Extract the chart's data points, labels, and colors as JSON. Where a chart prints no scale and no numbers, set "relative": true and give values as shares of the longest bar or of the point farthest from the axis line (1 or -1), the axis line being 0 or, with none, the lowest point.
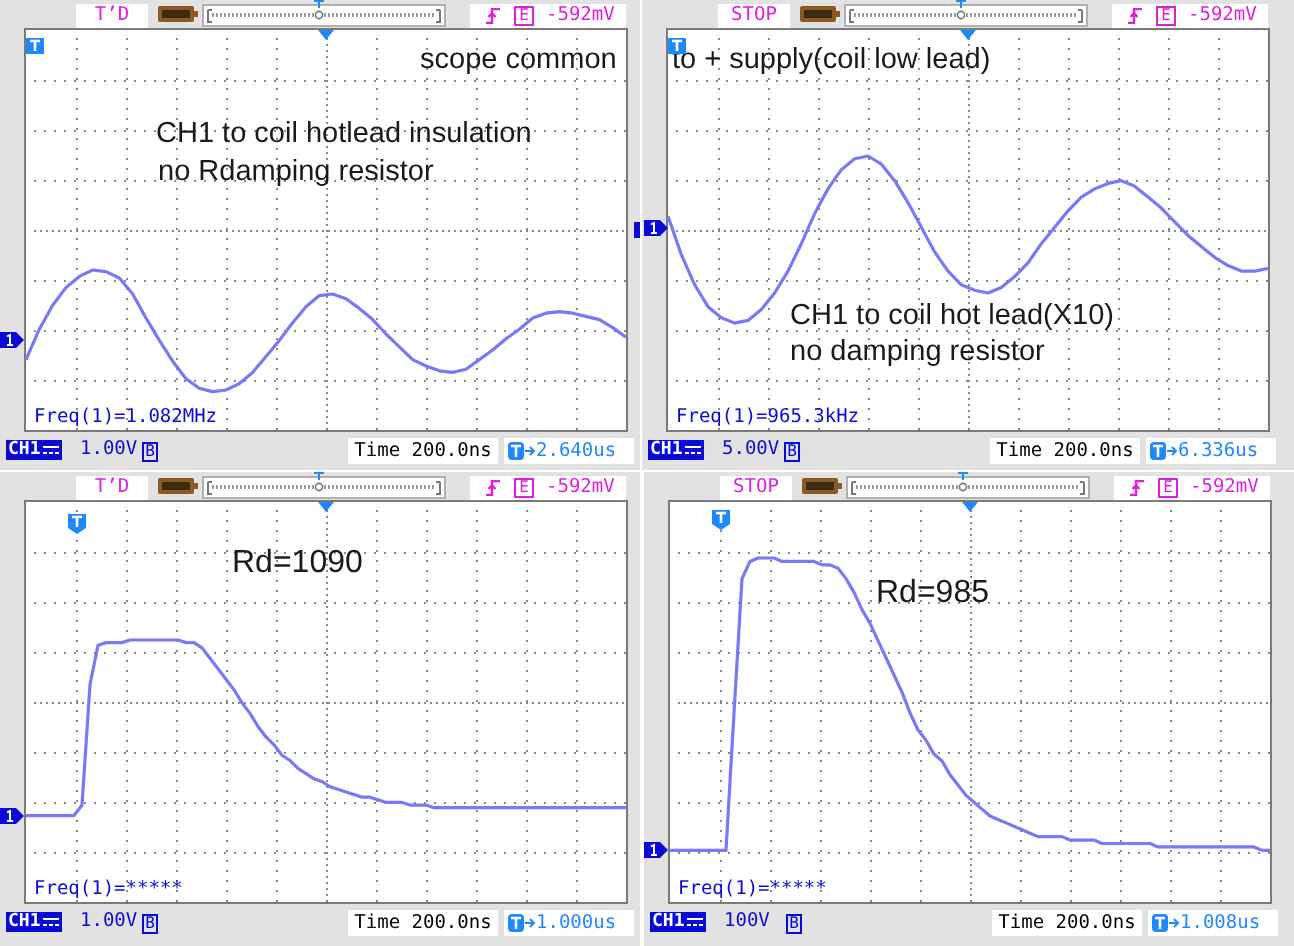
{
  "chart_data": [
    {
      "type": "line",
      "relative": true,
      "grid": true,
      "tick_labels": false,
      "color": "#7878f8",
      "categories": [
        null,
        null,
        null,
        null,
        null,
        null,
        null,
        null,
        null,
        null,
        null,
        null,
        null,
        null,
        null,
        null,
        null,
        null,
        null,
        null,
        null,
        null,
        null,
        null,
        null,
        null,
        null,
        null,
        null,
        null,
        null,
        null,
        null,
        null,
        null,
        null,
        null,
        null,
        null,
        null,
        null,
        null,
        null,
        null,
        null,
        null
      ],
      "values": [
        0.44,
        0.63,
        0.78,
        0.89,
        0.96,
        1,
        0.99,
        0.95,
        0.85,
        0.7,
        0.56,
        0.43,
        0.32,
        0.26,
        0.24,
        0.25,
        0.29,
        0.36,
        0.46,
        0.56,
        0.67,
        0.77,
        0.84,
        0.85,
        0.82,
        0.76,
        0.69,
        0.6,
        0.52,
        0.44,
        0.4,
        0.37,
        0.36,
        0.38,
        0.44,
        0.5,
        0.57,
        0.63,
        0.7,
        0.73,
        0.74,
        0.73,
        0.71,
        0.69,
        0.64,
        0.58
      ],
      "annotations": [
        "T’D",
        "E",
        "-592mV",
        "CH1",
        "1.00V",
        "B",
        "Time 200.0ns",
        "2.640us",
        "Freq(1)=1.082MHz",
        "CH1 to coil hotlead insulation",
        "no Rdamping resistor",
        "scope common"
      ]
    },
    {
      "type": "line",
      "relative": true,
      "grid": true,
      "tick_labels": false,
      "color": "#7878f8",
      "categories": [
        null,
        null,
        null,
        null,
        null,
        null,
        null,
        null,
        null,
        null,
        null,
        null,
        null,
        null,
        null,
        null,
        null,
        null,
        null,
        null,
        null,
        null,
        null,
        null,
        null,
        null,
        null,
        null,
        null,
        null,
        null,
        null,
        null,
        null,
        null,
        null,
        null,
        null,
        null,
        null,
        null,
        null,
        null,
        null,
        null,
        null
      ],
      "values": [
        0.78,
        0.64,
        0.53,
        0.45,
        0.41,
        0.39,
        0.4,
        0.44,
        0.5,
        0.58,
        0.68,
        0.79,
        0.88,
        0.95,
        0.99,
        1,
        0.97,
        0.91,
        0.83,
        0.74,
        0.65,
        0.58,
        0.53,
        0.51,
        0.5,
        0.52,
        0.56,
        0.61,
        0.68,
        0.74,
        0.8,
        0.85,
        0.88,
        0.9,
        0.91,
        0.89,
        0.85,
        0.81,
        0.76,
        0.71,
        0.67,
        0.63,
        0.6,
        0.58,
        0.58,
        0.59
      ],
      "annotations": [
        "STOP",
        "E",
        "-592mV",
        "CH1",
        "5.00V",
        "B",
        "Time 200.0ns",
        "6.336us",
        "Freq(1)=965.3kHz",
        "CH1 to coil hot lead(X10)",
        "no damping resistor",
        "to + supply(coil low lead)"
      ]
    },
    {
      "type": "line",
      "relative": true,
      "grid": true,
      "tick_labels": false,
      "color": "#7878f8",
      "categories": [
        null,
        null,
        null,
        null,
        null,
        null,
        null,
        null,
        null,
        null,
        null,
        null,
        null,
        null,
        null,
        null,
        null,
        null,
        null,
        null,
        null,
        null,
        null,
        null,
        null,
        null,
        null,
        null,
        null,
        null,
        null,
        null,
        null,
        null,
        null,
        null,
        null,
        null,
        null,
        null,
        null,
        null,
        null,
        null,
        null,
        null,
        null,
        null,
        null,
        null,
        null,
        null,
        null,
        null,
        null,
        null,
        null,
        null,
        null,
        null,
        null,
        null,
        null,
        null,
        null,
        null,
        null,
        null,
        null,
        null,
        null,
        null,
        null,
        null,
        null,
        null
      ],
      "values": [
        0.33,
        0.33,
        0.33,
        0.33,
        0.33,
        0.33,
        0.33,
        0.37,
        0.83,
        0.98,
        0.99,
        0.99,
        0.99,
        1,
        1,
        1,
        1,
        1,
        1,
        1,
        0.99,
        0.99,
        0.97,
        0.93,
        0.89,
        0.85,
        0.81,
        0.76,
        0.72,
        0.67,
        0.63,
        0.6,
        0.56,
        0.54,
        0.51,
        0.49,
        0.47,
        0.46,
        0.44,
        0.43,
        0.42,
        0.41,
        0.4,
        0.4,
        0.39,
        0.38,
        0.38,
        0.38,
        0.37,
        0.37,
        0.37,
        0.36,
        0.36,
        0.36,
        0.36,
        0.36,
        0.36,
        0.36,
        0.36,
        0.36,
        0.36,
        0.36,
        0.36,
        0.36,
        0.36,
        0.36,
        0.36,
        0.36,
        0.36,
        0.36,
        0.36,
        0.36,
        0.36,
        0.36,
        0.36,
        0.36
      ],
      "annotations": [
        "T’D",
        "E",
        "-592mV",
        "CH1",
        "1.00V",
        "B",
        "Time 200.0ns",
        "1.000us",
        "Freq(1)=*****",
        "Rd=1090"
      ]
    },
    {
      "type": "line",
      "relative": true,
      "grid": true,
      "tick_labels": false,
      "color": "#7878f8",
      "categories": [
        null,
        null,
        null,
        null,
        null,
        null,
        null,
        null,
        null,
        null,
        null,
        null,
        null,
        null,
        null,
        null,
        null,
        null,
        null,
        null,
        null,
        null,
        null,
        null,
        null,
        null,
        null,
        null,
        null,
        null,
        null,
        null,
        null,
        null,
        null,
        null,
        null,
        null,
        null,
        null,
        null,
        null,
        null,
        null,
        null,
        null,
        null,
        null,
        null,
        null,
        null,
        null,
        null,
        null,
        null,
        null,
        null,
        null,
        null,
        null,
        null,
        null,
        null,
        null,
        null,
        null,
        null,
        null,
        null,
        null,
        null,
        null,
        null,
        null,
        null,
        null
      ],
      "values": [
        0.15,
        0.15,
        0.15,
        0.15,
        0.15,
        0.15,
        0.15,
        0.15,
        0.55,
        0.94,
        0.99,
        1,
        1,
        1,
        0.99,
        0.99,
        0.99,
        0.99,
        0.99,
        0.98,
        0.98,
        0.97,
        0.94,
        0.9,
        0.85,
        0.81,
        0.76,
        0.71,
        0.66,
        0.61,
        0.55,
        0.5,
        0.47,
        0.43,
        0.41,
        0.37,
        0.34,
        0.31,
        0.29,
        0.27,
        0.25,
        0.24,
        0.23,
        0.22,
        0.21,
        0.2,
        0.19,
        0.19,
        0.19,
        0.19,
        0.18,
        0.18,
        0.18,
        0.18,
        0.17,
        0.17,
        0.17,
        0.17,
        0.17,
        0.17,
        0.17,
        0.16,
        0.16,
        0.16,
        0.16,
        0.16,
        0.16,
        0.16,
        0.16,
        0.16,
        0.16,
        0.16,
        0.16,
        0.16,
        0.15,
        0.15
      ],
      "annotations": [
        "STOP",
        "E",
        "-592mV",
        "CH1",
        "100V",
        "B",
        "Time 200.0ns",
        "1.008us",
        "Freq(1)=*****",
        "Rd=985"
      ]
    }
  ]
}
